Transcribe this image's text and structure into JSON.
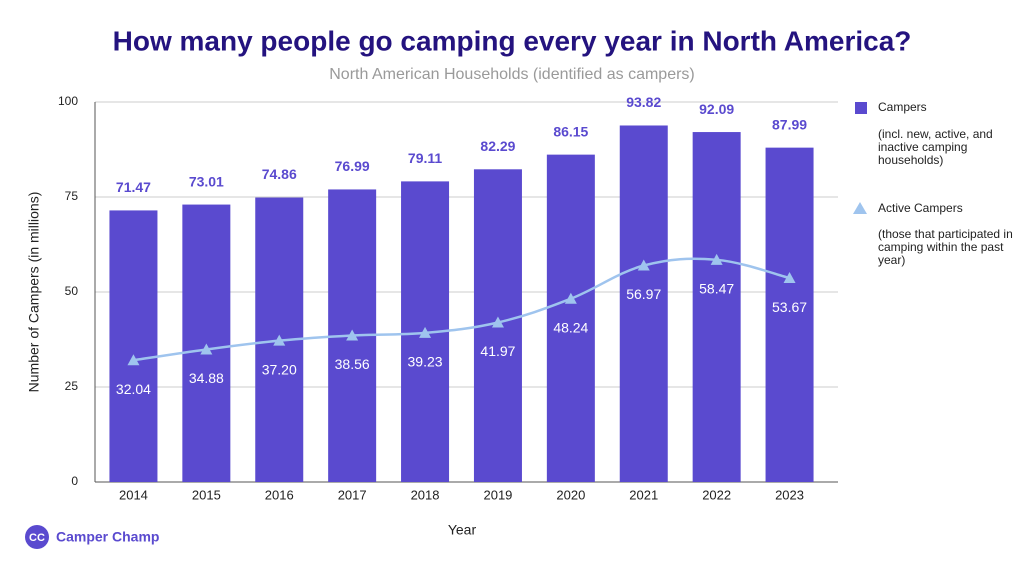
{
  "chart_data": {
    "type": "bar_line",
    "title": "How many people go camping every year in North America?",
    "subtitle": "North American Households (identified as campers)",
    "x_label": "Year",
    "y_label": "Number of Campers (in millions)",
    "categories": [
      "2014",
      "2015",
      "2016",
      "2017",
      "2018",
      "2019",
      "2020",
      "2021",
      "2022",
      "2023"
    ],
    "series": [
      {
        "name": "Campers",
        "note": "(incl. new, active, and inactive camping households)",
        "kind": "bar",
        "color": "#5a4acf",
        "values": [
          71.47,
          73.01,
          74.86,
          76.99,
          79.11,
          82.29,
          86.15,
          93.82,
          92.09,
          87.99
        ],
        "value_labels": [
          "71.47",
          "73.01",
          "74.86",
          "76.99",
          "79.11",
          "82.29",
          "86.15",
          "93.82",
          "92.09",
          "87.99"
        ]
      },
      {
        "name": "Active Campers",
        "note": "(those that participated in camping within the past year)",
        "kind": "line",
        "color": "#9fc4ee",
        "values": [
          32.04,
          34.88,
          37.2,
          38.56,
          39.23,
          41.97,
          48.24,
          56.97,
          58.47,
          53.67
        ],
        "value_labels": [
          "32.04",
          "34.88",
          "37.20",
          "38.56",
          "39.23",
          "41.97",
          "48.24",
          "56.97",
          "58.47",
          "53.67"
        ]
      }
    ],
    "ylim": [
      0,
      100
    ],
    "yticks": [
      0,
      25,
      50,
      75,
      100
    ],
    "grid": true,
    "brand": {
      "logo": "CC",
      "name": "Camper Champ"
    }
  }
}
